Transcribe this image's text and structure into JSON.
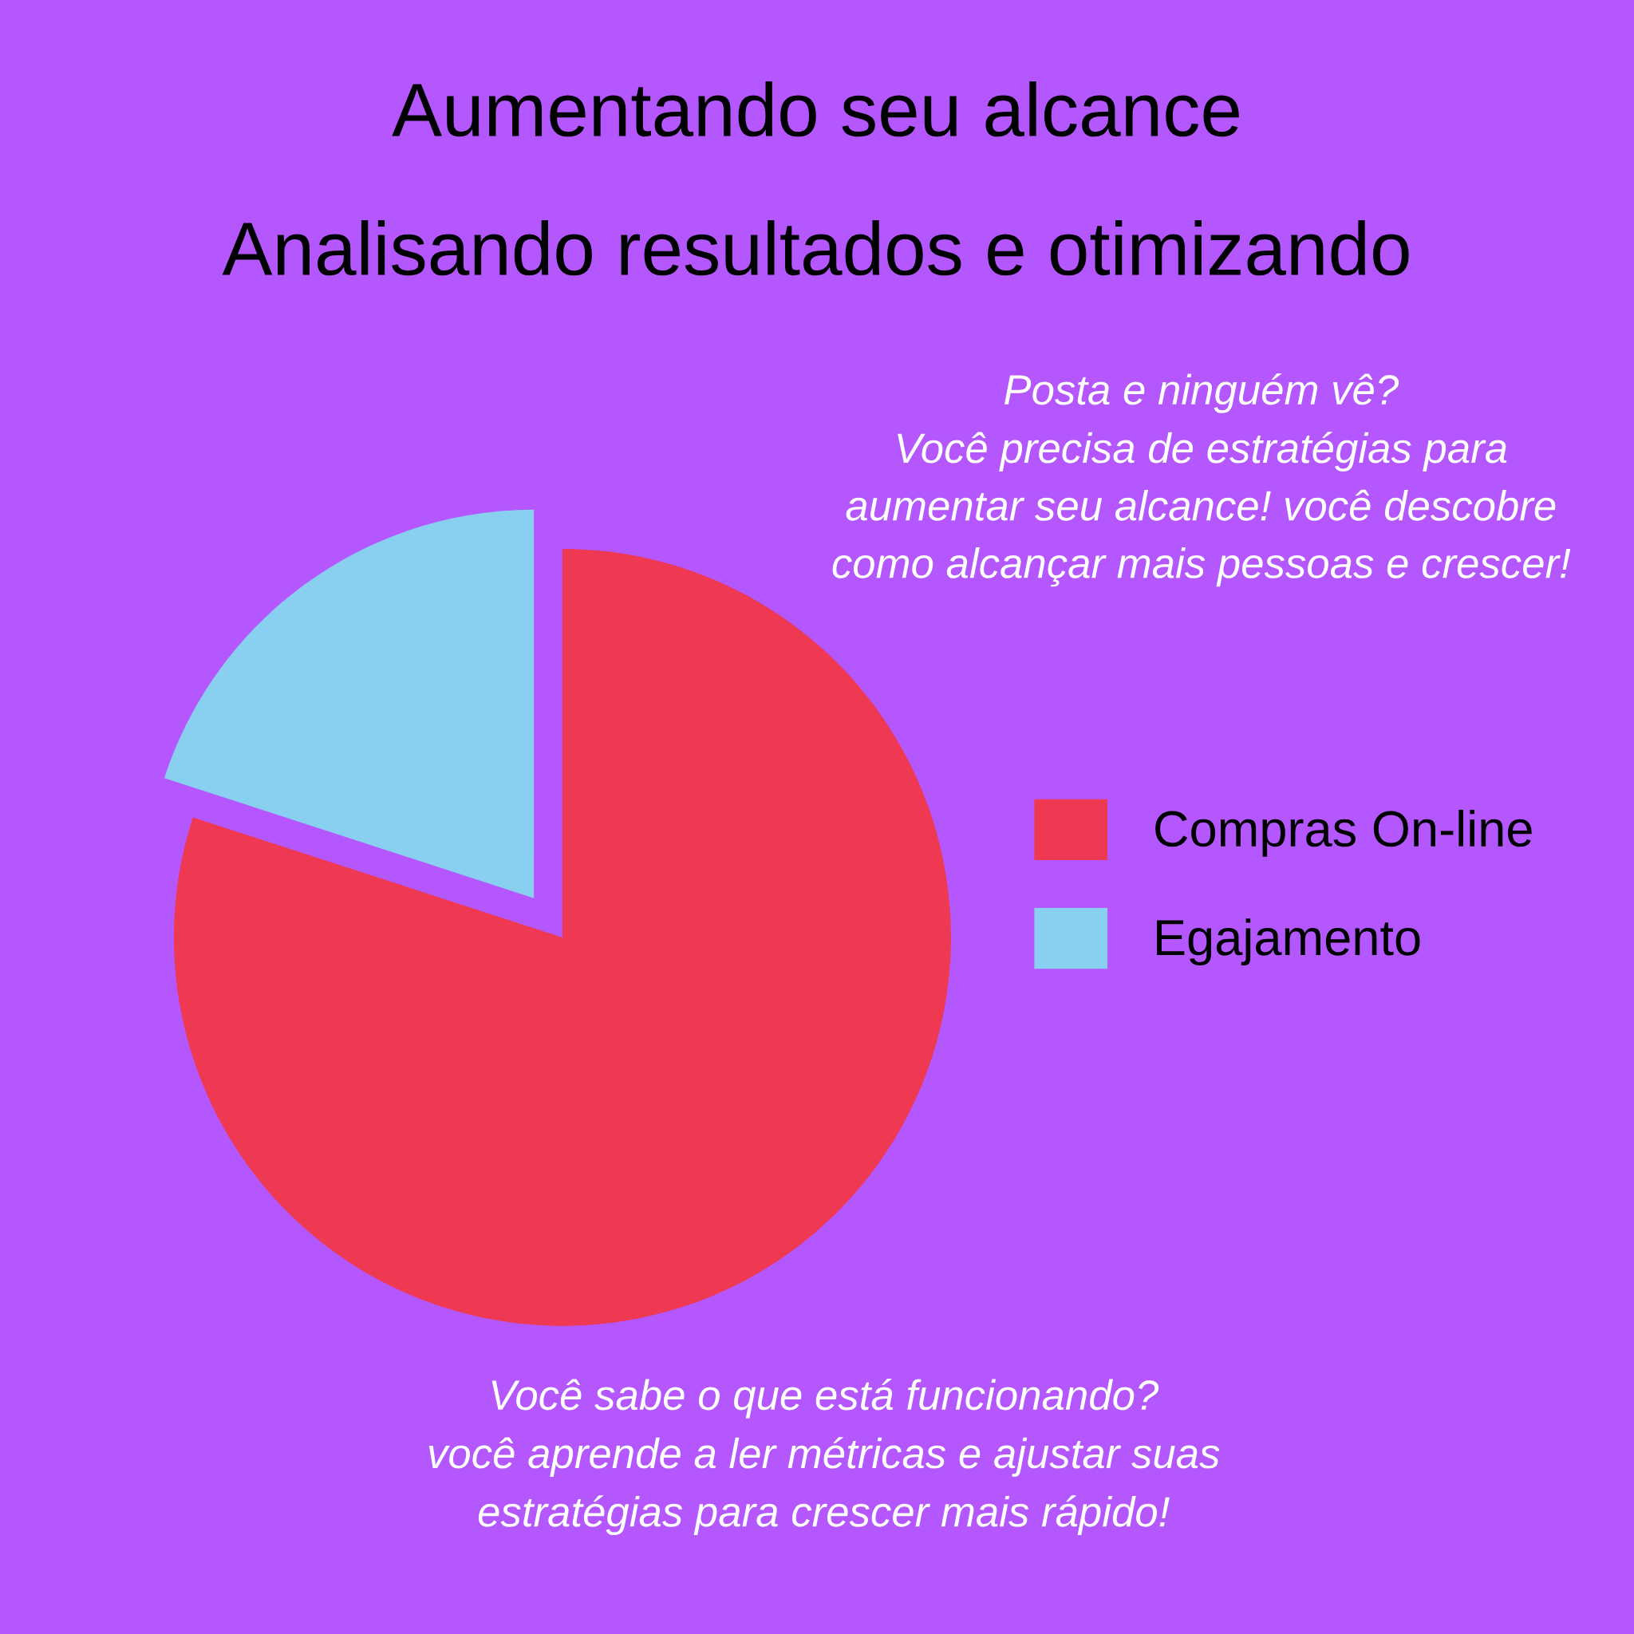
{
  "chart_data": {
    "type": "pie",
    "title": "Aumentando seu alcance",
    "subtitle": "Analisando resultados e otimizando",
    "categories": [
      "Compras On-line",
      "Egajamento"
    ],
    "values": [
      80,
      20
    ],
    "colors": [
      "#ef3851",
      "#88cff0"
    ],
    "legend": "right",
    "annotations": [
      "Posta e ninguém vê?\nVocê precisa de estratégias para\naumentar seu alcance! você descobre\ncomo alcançar mais pessoas e crescer!",
      "Você sabe o que está funcionando?\nvocê aprende a ler métricas e ajustar suas\nestratégias para crescer mais rápido!"
    ]
  }
}
